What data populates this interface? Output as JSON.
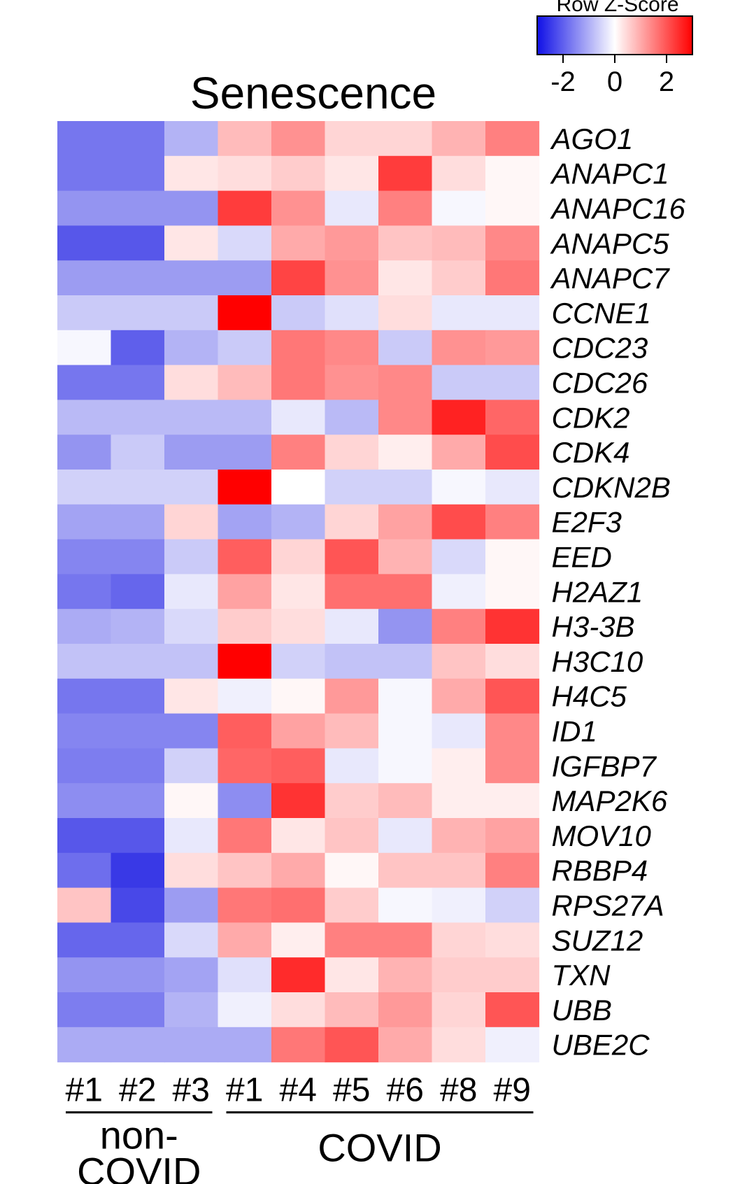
{
  "chart_data": {
    "type": "heatmap",
    "title": "Senescence",
    "legend": {
      "title": "Row Z-Score",
      "ticks": [
        -2,
        0,
        2
      ],
      "range": [
        -3,
        3
      ],
      "colors": {
        "low": "#0000ff",
        "mid": "#ffffff",
        "high": "#ff0000"
      }
    },
    "columns": [
      "#1",
      "#2",
      "#3",
      "#1",
      "#4",
      "#5",
      "#6",
      "#8",
      "#9"
    ],
    "groups": [
      {
        "name": "non-\nCOVID",
        "lines": [
          "non-",
          "COVID"
        ],
        "start": 0,
        "end": 2
      },
      {
        "name": "COVID",
        "lines": [
          "COVID"
        ],
        "start": 3,
        "end": 8
      }
    ],
    "rows": [
      "AGO1",
      "ANAPC1",
      "ANAPC16",
      "ANAPC5",
      "ANAPC7",
      "CCNE1",
      "CDC23",
      "CDC26",
      "CDK2",
      "CDK4",
      "CDKN2B",
      "E2F3",
      "EED",
      "H2AZ1",
      "H3-3B",
      "H3C10",
      "H4C5",
      "ID1",
      "IGFBP7",
      "MAP2K6",
      "MOV10",
      "RBBP4",
      "RPS27A",
      "SUZ12",
      "TXN",
      "UBB",
      "UBE2C"
    ],
    "values": [
      [
        -1.8,
        -1.8,
        -1.0,
        0.8,
        1.3,
        0.5,
        0.5,
        0.9,
        1.5
      ],
      [
        -1.8,
        -1.8,
        0.3,
        0.4,
        0.6,
        0.3,
        2.3,
        0.4,
        0.1
      ],
      [
        -1.4,
        -1.4,
        -1.4,
        2.3,
        1.3,
        -0.3,
        1.5,
        -0.1,
        0.1
      ],
      [
        -2.2,
        -2.2,
        0.3,
        -0.5,
        1.0,
        1.2,
        0.7,
        0.8,
        1.4
      ],
      [
        -1.3,
        -1.3,
        -1.3,
        -1.3,
        2.2,
        1.3,
        0.3,
        0.6,
        1.6
      ],
      [
        -0.7,
        -0.7,
        -0.7,
        3.0,
        -0.7,
        -0.4,
        0.4,
        -0.3,
        -0.3
      ],
      [
        -0.1,
        -2.1,
        -1.0,
        -0.7,
        1.6,
        1.4,
        -0.7,
        1.3,
        1.2
      ],
      [
        -1.8,
        -1.8,
        0.4,
        0.8,
        1.6,
        1.3,
        1.4,
        -0.7,
        -0.7
      ],
      [
        -0.9,
        -0.9,
        -0.9,
        -0.9,
        -0.3,
        -0.9,
        1.4,
        2.6,
        1.8
      ],
      [
        -1.4,
        -0.7,
        -1.3,
        -1.3,
        1.5,
        0.5,
        0.2,
        1.0,
        2.1
      ],
      [
        -0.6,
        -0.6,
        -0.6,
        3.0,
        0.0,
        -0.6,
        -0.6,
        -0.1,
        -0.3
      ],
      [
        -1.2,
        -1.2,
        0.5,
        -1.2,
        -1.0,
        0.5,
        1.1,
        2.1,
        1.5
      ],
      [
        -1.6,
        -1.6,
        -0.7,
        1.9,
        0.5,
        2.0,
        0.9,
        -0.5,
        0.1
      ],
      [
        -1.8,
        -2.0,
        -0.3,
        1.1,
        0.3,
        1.7,
        1.7,
        -0.2,
        0.1
      ],
      [
        -1.1,
        -1.0,
        -0.5,
        0.6,
        0.4,
        -0.3,
        -1.4,
        1.5,
        2.4
      ],
      [
        -0.8,
        -0.8,
        -0.8,
        3.0,
        -0.6,
        -0.8,
        -0.8,
        0.7,
        0.4
      ],
      [
        -1.8,
        -1.8,
        0.3,
        -0.2,
        0.1,
        1.2,
        -0.1,
        1.0,
        2.0
      ],
      [
        -1.6,
        -1.6,
        -1.6,
        1.9,
        1.1,
        0.8,
        -0.1,
        -0.3,
        1.4
      ],
      [
        -1.7,
        -1.7,
        -0.6,
        1.8,
        1.9,
        -0.3,
        -0.1,
        0.2,
        1.4
      ],
      [
        -1.5,
        -1.5,
        0.1,
        -1.5,
        2.4,
        0.6,
        0.8,
        0.2,
        0.2
      ],
      [
        -2.2,
        -2.2,
        -0.3,
        1.6,
        0.3,
        0.7,
        -0.3,
        0.9,
        1.1
      ],
      [
        -1.9,
        -2.6,
        0.4,
        0.7,
        1.0,
        0.1,
        0.7,
        0.7,
        1.5
      ],
      [
        0.7,
        -2.4,
        -1.3,
        1.6,
        1.7,
        0.6,
        -0.1,
        -0.2,
        -0.6
      ],
      [
        -2.0,
        -2.0,
        -0.5,
        1.0,
        0.2,
        1.5,
        1.5,
        0.5,
        0.4
      ],
      [
        -1.4,
        -1.4,
        -1.2,
        -0.4,
        2.5,
        0.3,
        0.9,
        0.6,
        0.6
      ],
      [
        -1.7,
        -1.7,
        -1.0,
        -0.2,
        0.4,
        0.8,
        1.2,
        0.5,
        2.0
      ],
      [
        -1.1,
        -1.1,
        -1.1,
        -1.1,
        1.6,
        2.0,
        1.0,
        0.4,
        -0.2
      ]
    ]
  }
}
